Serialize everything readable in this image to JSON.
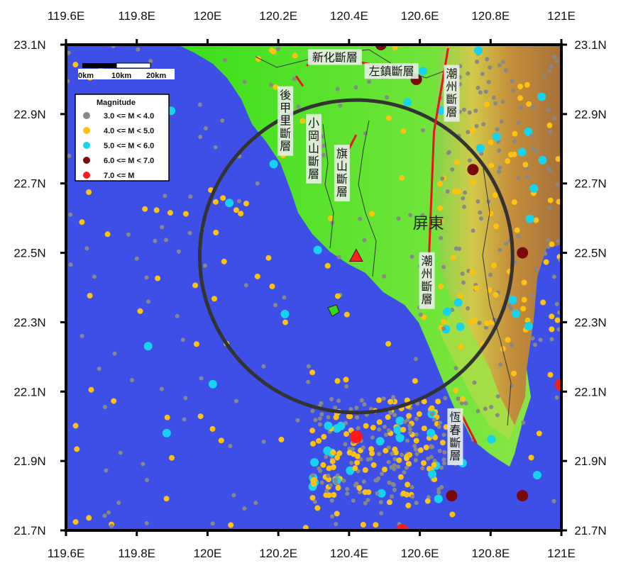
{
  "map": {
    "lon_ticks": [
      "119.6E",
      "119.8E",
      "120E",
      "120.2E",
      "120.4E",
      "120.6E",
      "120.8E",
      "121E"
    ],
    "lat_ticks": [
      "23.1N",
      "22.9N",
      "22.7N",
      "22.5N",
      "22.3N",
      "22.1N",
      "21.9N",
      "21.7N"
    ],
    "extent": {
      "lon_min": 119.6,
      "lon_max": 121.0,
      "lat_min": 21.7,
      "lat_max": 23.1
    },
    "colors": {
      "sea": "#3d4fe6",
      "frame": "#000000",
      "fault": "#e8141e",
      "circle": "#333333",
      "land_low": "#3bdc1c",
      "land_high": "#b5651d"
    }
  },
  "site": {
    "lon": 120.42,
    "lat": 22.49,
    "marker": "triangle",
    "color": "#ff2020"
  },
  "radius_circle": {
    "center_lon": 120.42,
    "center_lat": 22.49,
    "radius_km": 50
  },
  "region_label": {
    "text": "屏東",
    "lon": 120.58,
    "lat": 22.57
  },
  "faults": [
    {
      "name": "新化斷層",
      "points": [
        [
          120.28,
          23.04
        ],
        [
          120.33,
          23.07
        ]
      ],
      "label_lon": 120.36,
      "label_lat": 23.06
    },
    {
      "name": "左鎮斷層",
      "points": [
        [
          120.43,
          23.05
        ],
        [
          120.52,
          23.03
        ]
      ],
      "label_lon": 120.52,
      "label_lat": 23.02
    },
    {
      "name": "後甲里斷層",
      "points": [
        [
          120.25,
          23.01
        ],
        [
          120.27,
          22.98
        ]
      ],
      "label_lon": 120.22,
      "label_lat": 22.88
    },
    {
      "name": "小岡山斷層",
      "points": [
        [
          120.31,
          22.85
        ],
        [
          120.32,
          22.8
        ]
      ],
      "label_lon": 120.3,
      "label_lat": 22.8
    },
    {
      "name": "旗山斷層",
      "points": [
        [
          120.37,
          22.72
        ],
        [
          120.39,
          22.78
        ],
        [
          120.42,
          22.84
        ]
      ],
      "label_lon": 120.38,
      "label_lat": 22.73
    },
    {
      "name": "潮州斷層",
      "points": [
        [
          120.62,
          22.34
        ],
        [
          120.64,
          22.85
        ],
        [
          120.68,
          23.09
        ]
      ],
      "label_lon": 120.69,
      "label_lat": 22.96
    },
    {
      "name": "潮州斷層",
      "points": [],
      "label_lon": 120.62,
      "label_lat": 22.42
    },
    {
      "name": "恆春斷層",
      "points": [
        [
          120.71,
          22.05
        ],
        [
          120.76,
          21.95
        ]
      ],
      "label_lon": 120.7,
      "label_lat": 21.97
    }
  ],
  "legend": {
    "title": "Magnitude",
    "items": [
      {
        "label": "3.0 <= M < 4.0",
        "color": "#888888"
      },
      {
        "label": "4.0 <= M < 5.0",
        "color": "#ffc20e"
      },
      {
        "label": "5.0 <= M < 6.0",
        "color": "#16d4f0"
      },
      {
        "label": "6.0 <= M < 7.0",
        "color": "#7a0a0a"
      },
      {
        "label": "7.0 <= M",
        "color": "#ff1a1a"
      }
    ]
  },
  "scale_bar": {
    "labels": [
      "0km",
      "10km",
      "20km"
    ]
  },
  "notable_events": [
    {
      "lon": 120.42,
      "lat": 21.97,
      "mag_class": "7.0 <= M"
    },
    {
      "lon": 120.55,
      "lat": 21.7,
      "mag_class": "7.0 <= M"
    },
    {
      "lon": 121.0,
      "lat": 22.12,
      "mag_class": "7.0 <= M"
    },
    {
      "lon": 120.59,
      "lat": 23.0,
      "mag_class": "6.0 <= M < 7.0"
    },
    {
      "lon": 120.49,
      "lat": 23.1,
      "mag_class": "6.0 <= M < 7.0"
    },
    {
      "lon": 120.75,
      "lat": 22.74,
      "mag_class": "6.0 <= M < 7.0"
    },
    {
      "lon": 120.89,
      "lat": 22.5,
      "mag_class": "6.0 <= M < 7.0"
    },
    {
      "lon": 120.69,
      "lat": 21.8,
      "mag_class": "6.0 <= M < 7.0"
    },
    {
      "lon": 120.89,
      "lat": 21.8,
      "mag_class": "6.0 <= M < 7.0"
    }
  ]
}
